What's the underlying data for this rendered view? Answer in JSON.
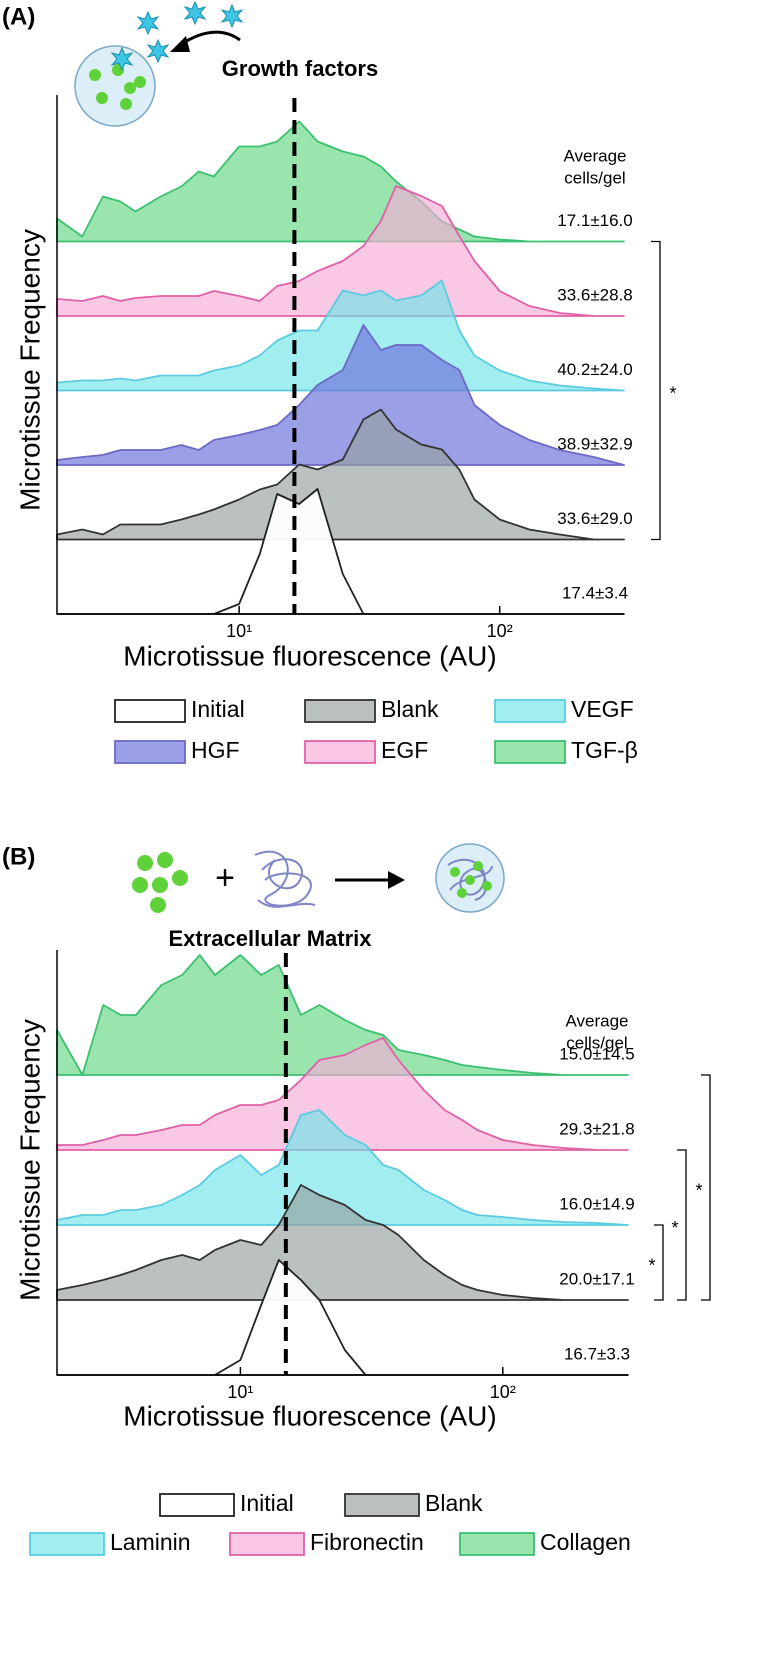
{
  "chart_data": [
    {
      "type": "ridgeline",
      "panel_label": "(A)",
      "illustration_label": "Growth factors",
      "ylabel": "Microtissue Frequency",
      "xlabel": "Microtissue fluorescence (AU)",
      "annotation_title": [
        "Average",
        "cells/gel"
      ],
      "log_x": true,
      "xlim": [
        2,
        300
      ],
      "ylim": [
        0,
        140
      ],
      "xticks": [
        {
          "value": 10,
          "label": "10¹"
        },
        {
          "value": 100,
          "label": "10²"
        }
      ],
      "vline": 16.3,
      "x": [
        2,
        2.5,
        3,
        3.5,
        4,
        5,
        6,
        7,
        8,
        10,
        12,
        14,
        17,
        20,
        25,
        30,
        35,
        40,
        50,
        60,
        70,
        80,
        100,
        130,
        170,
        230,
        300
      ],
      "series": [
        {
          "name": "Initial",
          "color": "#222222",
          "fill": "rgba(255,255,255,0.95)",
          "annotation": "17.4±3.4",
          "values": [
            0,
            0,
            0,
            0,
            0,
            0,
            0,
            0,
            0,
            10,
            60,
            120,
            110,
            125,
            40,
            0,
            0,
            0,
            0,
            0,
            0,
            0,
            0,
            0,
            0,
            0,
            0
          ]
        },
        {
          "name": "Blank",
          "color": "#333333",
          "fill": "rgba(150,160,160,0.65)",
          "annotation": "33.6±29.0",
          "values": [
            5,
            10,
            5,
            15,
            15,
            15,
            20,
            25,
            30,
            40,
            50,
            55,
            75,
            70,
            80,
            120,
            130,
            110,
            95,
            90,
            70,
            40,
            20,
            10,
            5,
            0,
            0
          ]
        },
        {
          "name": "HGF",
          "color": "#6a6ac4",
          "fill": "rgba(112,118,220,0.7)",
          "annotation": "38.9±32.9",
          "values": [
            5,
            8,
            10,
            15,
            15,
            15,
            20,
            15,
            25,
            30,
            35,
            40,
            60,
            80,
            95,
            140,
            115,
            120,
            120,
            105,
            95,
            60,
            40,
            25,
            15,
            8,
            0
          ]
        },
        {
          "name": "VEGF",
          "color": "#5ccbe0",
          "fill": "rgba(110,228,232,0.65)",
          "annotation": "40.2±24.0",
          "values": [
            8,
            10,
            10,
            12,
            10,
            15,
            15,
            15,
            20,
            25,
            35,
            50,
            60,
            60,
            100,
            95,
            100,
            90,
            95,
            110,
            60,
            35,
            20,
            10,
            5,
            2,
            0
          ]
        },
        {
          "name": "EGF",
          "color": "#e060a8",
          "fill": "rgba(245,170,215,0.65)",
          "annotation": "33.6±28.8",
          "values": [
            17,
            15,
            20,
            15,
            18,
            20,
            20,
            20,
            25,
            20,
            15,
            30,
            35,
            45,
            55,
            70,
            95,
            130,
            120,
            110,
            80,
            55,
            25,
            10,
            3,
            0,
            0
          ]
        },
        {
          "name": "TGF-β",
          "color": "#3cc070",
          "fill": "rgba(120,220,145,0.75)",
          "annotation": "17.1±16.0",
          "values": [
            23,
            5,
            45,
            40,
            30,
            45,
            55,
            70,
            65,
            95,
            95,
            100,
            120,
            100,
            90,
            85,
            75,
            60,
            40,
            20,
            12,
            5,
            2,
            0,
            0,
            0,
            0
          ]
        }
      ],
      "brackets": [
        {
          "from": "EGF",
          "to": "Blank",
          "label": "*"
        }
      ]
    },
    {
      "type": "ridgeline",
      "panel_label": "(B)",
      "illustration_label": "Extracellular Matrix",
      "plus_sign": "+",
      "ylabel": "Microtissue Frequency",
      "xlabel": "Microtissue fluorescence (AU)",
      "annotation_title": [
        "Average",
        "cells/gel"
      ],
      "log_x": true,
      "xlim": [
        2,
        300
      ],
      "ylim": [
        0,
        140
      ],
      "xticks": [
        {
          "value": 10,
          "label": "10¹"
        },
        {
          "value": 100,
          "label": "10²"
        }
      ],
      "vline": 14.9,
      "x": [
        2,
        2.5,
        3,
        3.5,
        4,
        5,
        6,
        7,
        8,
        10,
        12,
        14,
        17,
        20,
        25,
        30,
        35,
        40,
        50,
        60,
        70,
        80,
        100,
        130,
        170,
        230,
        300
      ],
      "series": [
        {
          "name": "Initial",
          "color": "#222222",
          "fill": "rgba(255,255,255,0.95)",
          "annotation": "16.7±3.3",
          "values": [
            0,
            0,
            0,
            0,
            0,
            0,
            0,
            0,
            0,
            15,
            70,
            115,
            95,
            75,
            25,
            0,
            0,
            0,
            0,
            0,
            0,
            0,
            0,
            0,
            0,
            0,
            0
          ]
        },
        {
          "name": "Blank",
          "color": "#333333",
          "fill": "rgba(150,160,160,0.65)",
          "annotation": "20.0±17.1",
          "values": [
            10,
            15,
            20,
            25,
            30,
            40,
            45,
            40,
            50,
            60,
            55,
            75,
            115,
            105,
            95,
            80,
            75,
            65,
            40,
            25,
            15,
            10,
            5,
            2,
            0,
            0,
            0
          ]
        },
        {
          "name": "Laminin",
          "color": "#5ccbe0",
          "fill": "rgba(110,228,232,0.65)",
          "annotation": "16.0±14.9",
          "values": [
            5,
            10,
            10,
            15,
            15,
            20,
            30,
            40,
            55,
            70,
            50,
            60,
            110,
            115,
            90,
            80,
            60,
            55,
            35,
            25,
            15,
            10,
            8,
            5,
            3,
            2,
            0
          ]
        },
        {
          "name": "Fibronectin",
          "color": "#e060a8",
          "fill": "rgba(245,170,215,0.65)",
          "annotation": "29.3±21.8",
          "values": [
            5,
            5,
            10,
            15,
            15,
            20,
            25,
            25,
            35,
            45,
            45,
            50,
            70,
            90,
            95,
            105,
            112,
            90,
            60,
            40,
            30,
            20,
            10,
            5,
            2,
            0,
            0
          ]
        },
        {
          "name": "Collagen",
          "color": "#3cc070",
          "fill": "rgba(120,220,145,0.75)",
          "annotation": "15.0±14.5",
          "values": [
            45,
            0,
            70,
            60,
            60,
            90,
            100,
            120,
            100,
            120,
            100,
            110,
            60,
            70,
            55,
            45,
            40,
            25,
            20,
            15,
            10,
            8,
            5,
            2,
            0,
            0,
            0
          ]
        }
      ],
      "brackets": [
        {
          "from": "Blank",
          "to": "Blank",
          "label": "*"
        },
        {
          "from": "Laminin",
          "to": "Blank",
          "label": "*"
        },
        {
          "from": "Fibronectin",
          "to": "Blank",
          "label": "*"
        }
      ]
    }
  ]
}
